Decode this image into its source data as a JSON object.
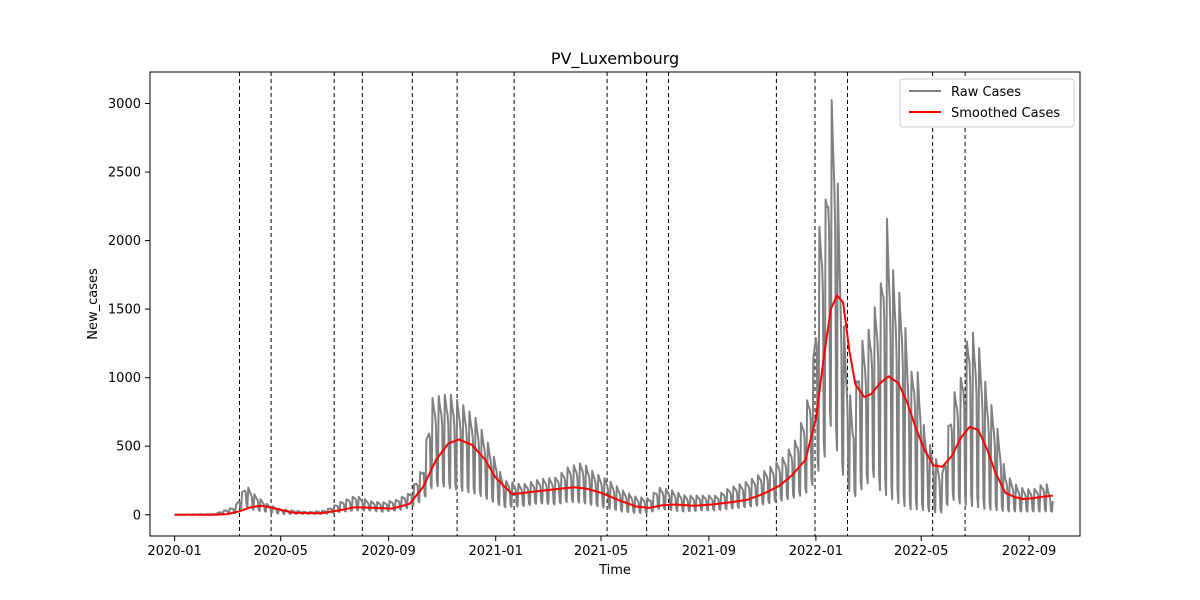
{
  "chart_data": {
    "type": "line",
    "title": "PV_Luxembourg",
    "xlabel": "Time",
    "ylabel": "New_cases",
    "x_type": "date",
    "xlim": [
      "2019-12-04",
      "2022-10-29"
    ],
    "ylim": [
      -155,
      3230
    ],
    "x_ticks": [
      "2020-01",
      "2020-05",
      "2020-09",
      "2021-01",
      "2021-05",
      "2021-09",
      "2022-01",
      "2022-05",
      "2022-09"
    ],
    "y_ticks": [
      0,
      500,
      1000,
      1500,
      2000,
      2500,
      3000
    ],
    "grid": false,
    "legend": {
      "position": "top-right"
    },
    "series": [
      {
        "name": "Raw Cases",
        "color": "#808080",
        "style": "weekly-oscillating daily counts",
        "x": [
          "2020-01-01",
          "2020-02-15",
          "2020-03-10",
          "2020-03-22",
          "2020-04-01",
          "2020-04-15",
          "2020-05-01",
          "2020-06-01",
          "2020-06-20",
          "2020-07-10",
          "2020-07-25",
          "2020-08-10",
          "2020-08-25",
          "2020-09-10",
          "2020-09-25",
          "2020-10-10",
          "2020-10-20",
          "2020-10-30",
          "2020-11-10",
          "2020-11-25",
          "2020-12-10",
          "2020-12-25",
          "2021-01-10",
          "2021-02-01",
          "2021-02-20",
          "2021-03-10",
          "2021-03-25",
          "2021-04-10",
          "2021-04-25",
          "2021-05-10",
          "2021-05-25",
          "2021-06-10",
          "2021-06-25",
          "2021-07-05",
          "2021-07-20",
          "2021-08-05",
          "2021-08-25",
          "2021-09-10",
          "2021-09-25",
          "2021-10-10",
          "2021-10-25",
          "2021-11-10",
          "2021-11-25",
          "2021-12-10",
          "2021-12-20",
          "2021-12-28",
          "2022-01-05",
          "2022-01-12",
          "2022-01-18",
          "2022-01-24",
          "2022-01-30",
          "2022-02-05",
          "2022-02-12",
          "2022-02-20",
          "2022-02-28",
          "2022-03-08",
          "2022-03-15",
          "2022-03-22",
          "2022-03-28",
          "2022-04-03",
          "2022-04-10",
          "2022-04-18",
          "2022-04-25",
          "2022-05-05",
          "2022-05-15",
          "2022-05-25",
          "2022-06-05",
          "2022-06-15",
          "2022-06-25",
          "2022-07-05",
          "2022-07-15",
          "2022-07-25",
          "2022-08-05",
          "2022-08-20",
          "2022-09-05",
          "2022-09-20",
          "2022-09-28"
        ],
        "values_high": [
          0,
          5,
          60,
          220,
          150,
          80,
          40,
          20,
          30,
          100,
          140,
          100,
          90,
          110,
          160,
          350,
          850,
          870,
          880,
          800,
          700,
          500,
          250,
          220,
          260,
          270,
          350,
          380,
          300,
          250,
          180,
          130,
          120,
          200,
          180,
          140,
          140,
          140,
          200,
          230,
          280,
          350,
          420,
          560,
          780,
          1000,
          2100,
          2300,
          3070,
          2800,
          1650,
          1100,
          700,
          1250,
          1300,
          1500,
          1600,
          2220,
          1850,
          1650,
          1580,
          1000,
          1150,
          600,
          450,
          300,
          850,
          1000,
          1380,
          1250,
          900,
          700,
          300,
          200,
          180,
          240,
          100
        ],
        "values_low": [
          0,
          0,
          10,
          60,
          30,
          20,
          5,
          5,
          5,
          20,
          30,
          30,
          20,
          30,
          50,
          100,
          180,
          200,
          180,
          160,
          140,
          100,
          50,
          60,
          80,
          70,
          90,
          80,
          60,
          40,
          20,
          10,
          10,
          40,
          30,
          20,
          30,
          30,
          40,
          50,
          60,
          80,
          100,
          120,
          140,
          200,
          300,
          400,
          600,
          450,
          300,
          200,
          100,
          150,
          200,
          250,
          150,
          100,
          80,
          60,
          40,
          20,
          20,
          20,
          10,
          10,
          100,
          60,
          40,
          30,
          20,
          20,
          20,
          20,
          20,
          20,
          20
        ]
      },
      {
        "name": "Smoothed Cases",
        "color": "#ff0000",
        "x": [
          "2020-01-01",
          "2020-02-15",
          "2020-03-01",
          "2020-03-15",
          "2020-03-28",
          "2020-04-10",
          "2020-04-25",
          "2020-05-15",
          "2020-06-15",
          "2020-07-05",
          "2020-07-25",
          "2020-08-15",
          "2020-09-05",
          "2020-09-25",
          "2020-10-10",
          "2020-10-25",
          "2020-11-08",
          "2020-11-20",
          "2020-12-05",
          "2020-12-20",
          "2021-01-01",
          "2021-01-20",
          "2021-02-15",
          "2021-03-15",
          "2021-04-01",
          "2021-04-15",
          "2021-05-01",
          "2021-05-20",
          "2021-06-10",
          "2021-06-25",
          "2021-07-10",
          "2021-07-25",
          "2021-08-15",
          "2021-09-05",
          "2021-09-25",
          "2021-10-15",
          "2021-11-01",
          "2021-11-20",
          "2021-12-05",
          "2021-12-20",
          "2022-01-01",
          "2022-01-10",
          "2022-01-18",
          "2022-01-25",
          "2022-02-01",
          "2022-02-08",
          "2022-02-15",
          "2022-02-25",
          "2022-03-05",
          "2022-03-15",
          "2022-03-25",
          "2022-04-05",
          "2022-04-15",
          "2022-04-25",
          "2022-05-05",
          "2022-05-15",
          "2022-05-25",
          "2022-06-05",
          "2022-06-15",
          "2022-06-25",
          "2022-07-05",
          "2022-07-15",
          "2022-07-25",
          "2022-08-05",
          "2022-08-15",
          "2022-08-25",
          "2022-09-05",
          "2022-09-15",
          "2022-09-28"
        ],
        "values": [
          0,
          0,
          5,
          25,
          55,
          65,
          45,
          15,
          10,
          30,
          55,
          50,
          45,
          80,
          200,
          400,
          520,
          550,
          510,
          400,
          270,
          150,
          170,
          190,
          200,
          190,
          160,
          110,
          60,
          50,
          70,
          75,
          65,
          75,
          90,
          110,
          150,
          210,
          290,
          400,
          700,
          1150,
          1500,
          1600,
          1550,
          1200,
          950,
          860,
          880,
          960,
          1010,
          960,
          820,
          630,
          470,
          360,
          350,
          430,
          560,
          640,
          620,
          480,
          300,
          160,
          130,
          115,
          120,
          130,
          140
        ]
      }
    ],
    "vertical_lines": [
      "2020-03-15",
      "2020-04-20",
      "2020-07-01",
      "2020-08-02",
      "2020-09-28",
      "2020-11-18",
      "2021-01-22",
      "2021-05-08",
      "2021-06-22",
      "2021-07-17",
      "2021-11-17",
      "2021-12-31",
      "2022-02-06",
      "2022-05-14",
      "2022-06-20"
    ]
  }
}
